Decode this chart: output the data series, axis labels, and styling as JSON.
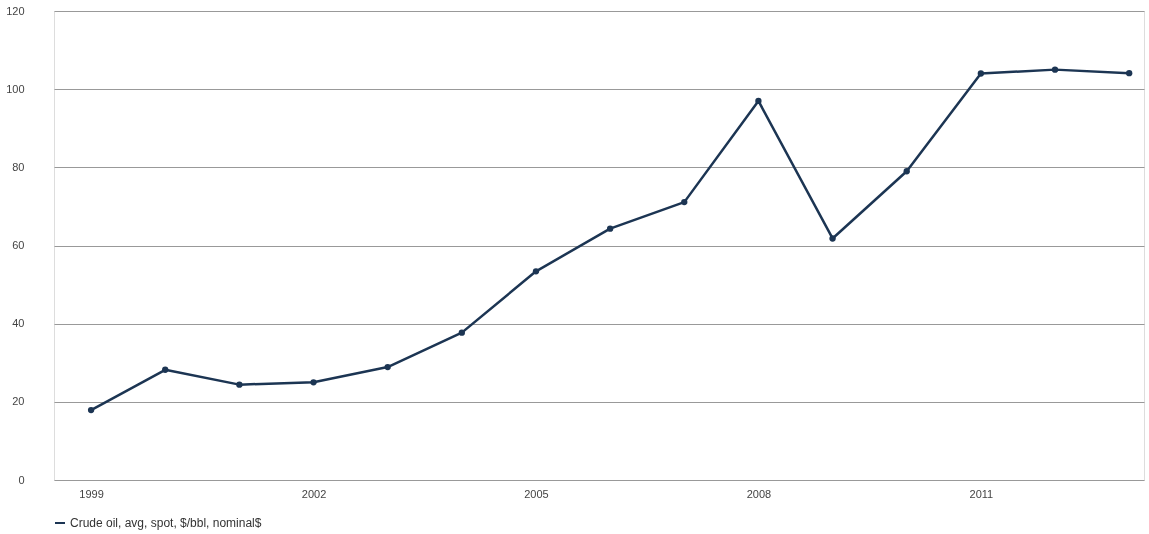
{
  "chart_data": {
    "type": "line",
    "x": [
      1999,
      2000,
      2001,
      2002,
      2003,
      2004,
      2005,
      2006,
      2007,
      2008,
      2009,
      2010,
      2011,
      2012,
      2013
    ],
    "series": [
      {
        "name": "Crude oil, avg, spot, $/bbl, nominal$",
        "color": "#1c3553",
        "values": [
          17.9,
          28.2,
          24.4,
          25.0,
          28.9,
          37.7,
          53.4,
          64.3,
          71.1,
          97.0,
          61.8,
          79.0,
          104.0,
          105.0,
          104.1
        ]
      }
    ],
    "xlim": [
      1998.5,
      2013.2
    ],
    "xticks": [
      1999,
      2002,
      2005,
      2008,
      2011
    ],
    "ylim": [
      0,
      120
    ],
    "yticks": [
      0,
      20,
      40,
      60,
      80,
      100,
      120
    ],
    "grid": "y",
    "legend": "bottom",
    "marker": "circle",
    "line_style": "solid"
  }
}
